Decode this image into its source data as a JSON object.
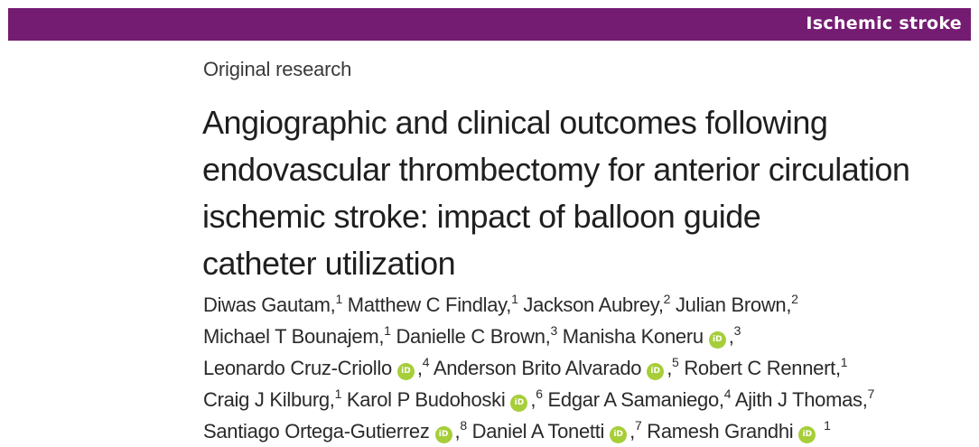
{
  "banner": {
    "section": "Ischemic stroke",
    "color": "#741c72"
  },
  "article_type": "Original research",
  "title_lines": [
    "Angiographic and clinical outcomes following",
    "endovascular thrombectomy for anterior circulation",
    "ischemic stroke: impact of balloon guide",
    "catheter utilization"
  ],
  "orcid_icon": {
    "glyph": "iD",
    "color": "#a6ce39"
  },
  "authors": [
    {
      "name": "Diwas Gautam",
      "aff": "1",
      "orcid": false
    },
    {
      "name": "Matthew C Findlay",
      "aff": "1",
      "orcid": false
    },
    {
      "name": "Jackson Aubrey",
      "aff": "2",
      "orcid": false
    },
    {
      "name": "Julian Brown",
      "aff": "2",
      "orcid": false
    },
    {
      "name": "Michael T Bounajem",
      "aff": "1",
      "orcid": false
    },
    {
      "name": "Danielle C Brown",
      "aff": "3",
      "orcid": false
    },
    {
      "name": "Manisha Koneru",
      "aff": "3",
      "orcid": true
    },
    {
      "name": "Leonardo Cruz-Criollo",
      "aff": "4",
      "orcid": true
    },
    {
      "name": "Anderson Brito Alvarado",
      "aff": "5",
      "orcid": true
    },
    {
      "name": "Robert C Rennert",
      "aff": "1",
      "orcid": false
    },
    {
      "name": "Craig J Kilburg",
      "aff": "1",
      "orcid": false
    },
    {
      "name": "Karol P Budohoski",
      "aff": "6",
      "orcid": true
    },
    {
      "name": "Edgar A Samaniego",
      "aff": "4",
      "orcid": false
    },
    {
      "name": "Ajith J Thomas",
      "aff": "7",
      "orcid": false
    },
    {
      "name": "Santiago Ortega-Gutierrez",
      "aff": "8",
      "orcid": true
    },
    {
      "name": "Daniel A Tonetti",
      "aff": "7",
      "orcid": true
    },
    {
      "name": "Ramesh Grandhi",
      "aff": "1",
      "orcid": true
    }
  ]
}
